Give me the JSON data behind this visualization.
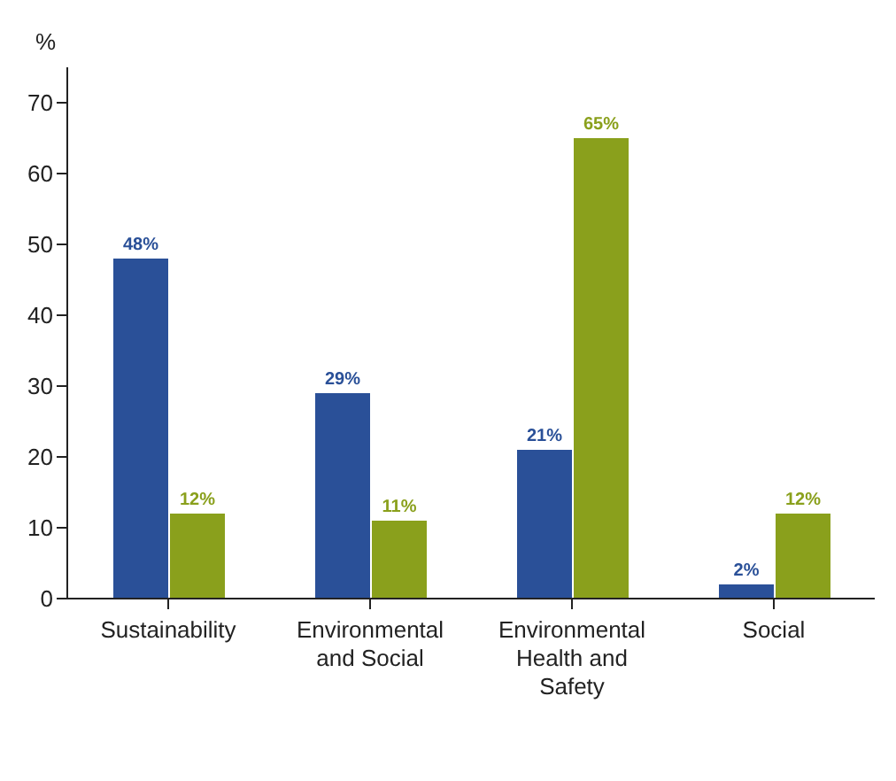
{
  "chart_data": {
    "type": "bar",
    "ylabel": "%",
    "categories": [
      "Sustainability",
      "Environmental and Social",
      "Environmental Health and Safety",
      "Social"
    ],
    "series": [
      {
        "color": "#2a5098",
        "values": [
          48,
          29,
          21,
          2
        ],
        "value_labels": [
          "48%",
          "29%",
          "21%",
          "2%"
        ]
      },
      {
        "color": "#8aa01c",
        "values": [
          12,
          11,
          65,
          12
        ],
        "value_labels": [
          "12%",
          "11%",
          "65%",
          "12%"
        ]
      }
    ],
    "ylim": [
      0,
      75
    ],
    "yticks": [
      0,
      10,
      20,
      30,
      40,
      50,
      60,
      70
    ],
    "grid": false,
    "legend": false
  }
}
